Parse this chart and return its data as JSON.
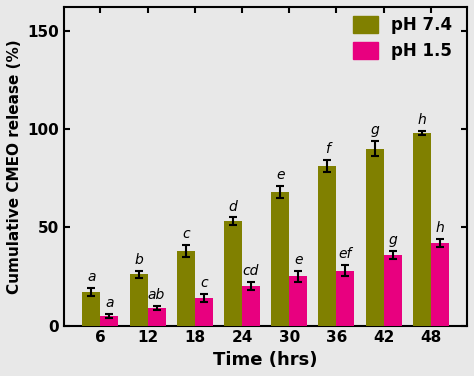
{
  "time_labels": [
    "6",
    "12",
    "18",
    "24",
    "30",
    "36",
    "42",
    "48"
  ],
  "ph74_values": [
    17,
    26,
    38,
    53,
    68,
    81,
    90,
    98
  ],
  "ph15_values": [
    5,
    9,
    14,
    20,
    25,
    28,
    36,
    42
  ],
  "ph74_errors": [
    2,
    2,
    3,
    2,
    3,
    3,
    4,
    1
  ],
  "ph15_errors": [
    1,
    1,
    2,
    2,
    3,
    3,
    2,
    2
  ],
  "ph74_color": "#808000",
  "ph15_color": "#E8007F",
  "ph74_label": "pH 7.4",
  "ph15_label": "pH 1.5",
  "ph74_letters": [
    "a",
    "b",
    "c",
    "d",
    "e",
    "f",
    "g",
    "h"
  ],
  "ph15_letters": [
    "a",
    "ab",
    "c",
    "cd",
    "e",
    "ef",
    "g",
    "h"
  ],
  "ylabel": "Cumulative CMEO release (%)",
  "xlabel": "Time (hrs)",
  "ylim": [
    0,
    162
  ],
  "yticks": [
    0,
    50,
    100,
    150
  ],
  "bar_width": 0.38,
  "label_fontsize": 11,
  "tick_fontsize": 11,
  "legend_fontsize": 12,
  "letter_fontsize": 10,
  "bg_color": "#E8E8E8"
}
